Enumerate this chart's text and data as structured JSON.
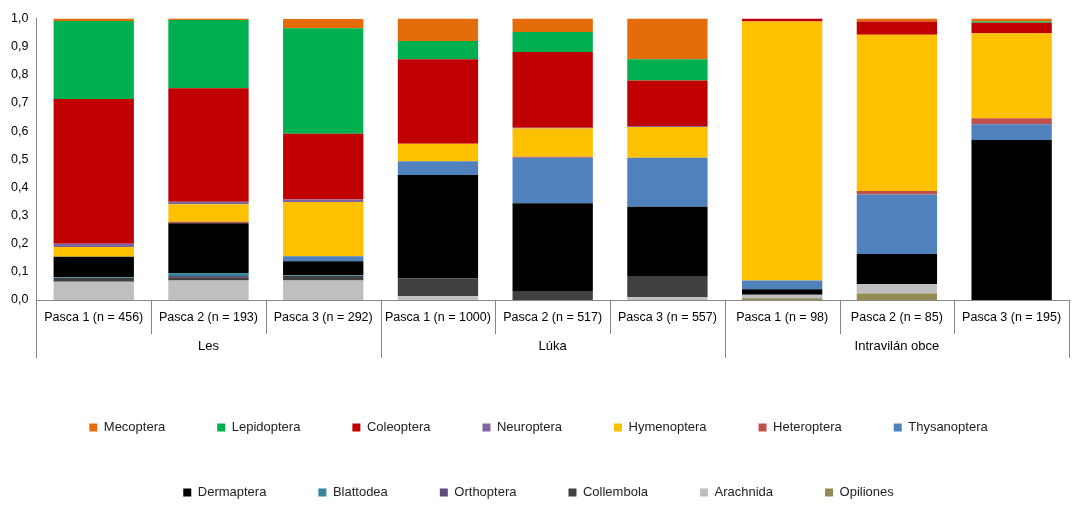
{
  "chart_data": {
    "type": "bar",
    "stacked": true,
    "categories": [
      "Pasca 1 (n = 456)",
      "Pasca 2 (n = 193)",
      "Pasca 3 (n = 292)",
      "Pasca 1 (n = 1000)",
      "Pasca 2 (n = 517)",
      "Pasca 3 (n = 557)",
      "Pasca 1 (n = 98)",
      "Pasca 2 (n = 85)",
      "Pasca 3 (n = 195)"
    ],
    "series": [
      {
        "name": "Opiliones",
        "color": "#948a54",
        "values": [
          0,
          0,
          0,
          0,
          0,
          0,
          0.006,
          0.023,
          0
        ]
      },
      {
        "name": "Arachnida",
        "color": "#bfbfbf",
        "values": [
          0.065,
          0.069,
          0.069,
          0.013,
          0,
          0.01,
          0.013,
          0.033,
          0
        ]
      },
      {
        "name": "Collembola",
        "color": "#404040",
        "values": [
          0.013,
          0.012,
          0.016,
          0.063,
          0.032,
          0.075,
          0,
          0,
          0
        ]
      },
      {
        "name": "Orthoptera",
        "color": "#604a7b",
        "values": [
          0,
          0.004,
          0,
          0,
          0,
          0,
          0,
          0,
          0
        ]
      },
      {
        "name": "Blattodea",
        "color": "#31859c",
        "values": [
          0.003,
          0.01,
          0.003,
          0,
          0,
          0,
          0,
          0,
          0
        ]
      },
      {
        "name": "Dermaptera",
        "color": "#000000",
        "values": [
          0.073,
          0.178,
          0.05,
          0.368,
          0.312,
          0.246,
          0.019,
          0.107,
          0.568
        ]
      },
      {
        "name": "Thysanoptera",
        "color": "#4f81bd",
        "values": [
          0,
          0,
          0.017,
          0.049,
          0.161,
          0.174,
          0.031,
          0.212,
          0.056
        ]
      },
      {
        "name": "Heteroptera",
        "color": "#c0504d",
        "values": [
          0,
          0.005,
          null,
          0,
          0.004,
          0,
          0,
          0.012,
          0.022
        ]
      },
      {
        "name": "Hymenoptera",
        "color": "#ffc000",
        "values": [
          0.034,
          0.062,
          0.193,
          0.062,
          0.1,
          0.11,
          0.92,
          0.555,
          0.302
        ]
      },
      {
        "name": "Neuroptera",
        "color": "#8064a2",
        "values": [
          0.012,
          0.009,
          0.009,
          0,
          0.003,
          0.003,
          0,
          0,
          0
        ]
      },
      {
        "name": "Coleoptera",
        "color": "#c00000",
        "values": [
          0.514,
          0.403,
          0.234,
          0.3,
          0.269,
          0.162,
          0.011,
          0.047,
          0.037
        ]
      },
      {
        "name": "Lepidoptera",
        "color": "#00b050",
        "values": [
          0.277,
          0.243,
          0.374,
          0.065,
          0.071,
          0.075,
          0,
          0,
          0.004
        ]
      },
      {
        "name": "Mecoptera",
        "color": "#e46c0a",
        "values": [
          0.009,
          0.005,
          0.033,
          0.08,
          0.048,
          0.145,
          0,
          0.011,
          0.011
        ]
      }
    ],
    "ylim": [
      0,
      1
    ],
    "yticks": [
      {
        "value": 0,
        "label": "0,0"
      },
      {
        "value": 0.1,
        "label": "0,1"
      },
      {
        "value": 0.2,
        "label": "0,2"
      },
      {
        "value": 0.3,
        "label": "0,3"
      },
      {
        "value": 0.4,
        "label": "0,4"
      },
      {
        "value": 0.5,
        "label": "0,5"
      },
      {
        "value": 0.6,
        "label": "0,6"
      },
      {
        "value": 0.7,
        "label": "0,7"
      },
      {
        "value": 0.8,
        "label": "0,8"
      },
      {
        "value": 0.9,
        "label": "0,9"
      },
      {
        "value": 1,
        "label": "1,0"
      }
    ],
    "annotations": [
      "Les",
      "Lúka",
      "Intravilán obce"
    ],
    "grid": false,
    "legend": "bottom"
  }
}
